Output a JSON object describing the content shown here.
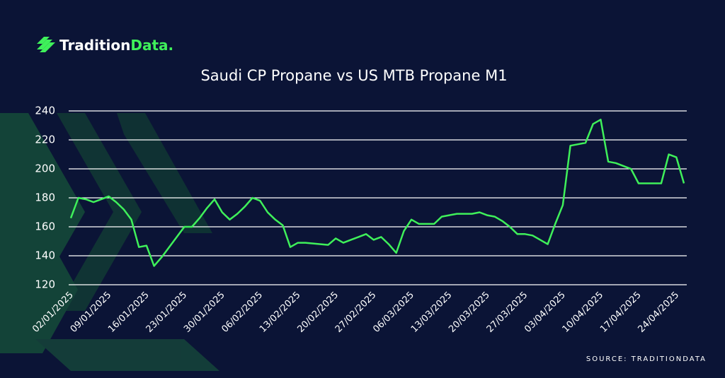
{
  "logo": [
    "Tradition",
    "Data."
  ],
  "source": "SOURCE: TRADITIONDATA",
  "chart_data": {
    "type": "line",
    "title": "Saudi CP Propane vs US MTB Propane M1",
    "categories": [
      "02/01/2025",
      null,
      null,
      null,
      null,
      "09/01/2025",
      null,
      null,
      null,
      null,
      "16/01/2025",
      null,
      null,
      null,
      null,
      "23/01/2025",
      null,
      null,
      null,
      null,
      "30/01/2025",
      null,
      null,
      null,
      null,
      "06/02/2025",
      null,
      null,
      null,
      null,
      "13/02/2025",
      null,
      null,
      null,
      null,
      "20/02/2025",
      null,
      null,
      null,
      null,
      "27/02/2025",
      null,
      null,
      null,
      null,
      "06/03/2025",
      null,
      null,
      null,
      null,
      "13/03/2025",
      null,
      null,
      null,
      null,
      "20/03/2025",
      null,
      null,
      null,
      null,
      "27/03/2025",
      null,
      null,
      null,
      null,
      "03/04/2025",
      null,
      null,
      null,
      null,
      "10/04/2025",
      null,
      null,
      null,
      null,
      "17/04/2025",
      null,
      null,
      null,
      null,
      "24/04/2025",
      null
    ],
    "values": [
      166,
      180,
      179,
      177,
      179,
      181,
      177,
      172,
      165,
      146,
      147,
      133,
      139,
      146,
      153,
      160,
      160,
      166,
      173,
      179,
      170,
      165,
      169,
      174,
      180,
      178,
      170,
      165,
      161,
      146,
      149,
      149,
      148.5,
      148,
      147.5,
      152,
      149,
      151,
      153,
      155,
      151,
      153,
      148,
      142,
      157,
      165,
      162,
      162,
      162,
      167,
      168,
      169,
      169,
      169,
      170,
      168,
      167,
      164,
      160,
      155,
      155,
      154,
      151,
      148,
      162,
      175,
      216,
      217,
      218,
      231,
      234,
      205,
      204,
      202,
      200,
      190,
      190,
      190,
      190,
      210,
      208,
      190
    ],
    "color": "#3ff05a",
    "ylim": [
      120,
      240
    ],
    "yticks": [
      120,
      140,
      160,
      180,
      200,
      220,
      240
    ],
    "grid": true
  }
}
